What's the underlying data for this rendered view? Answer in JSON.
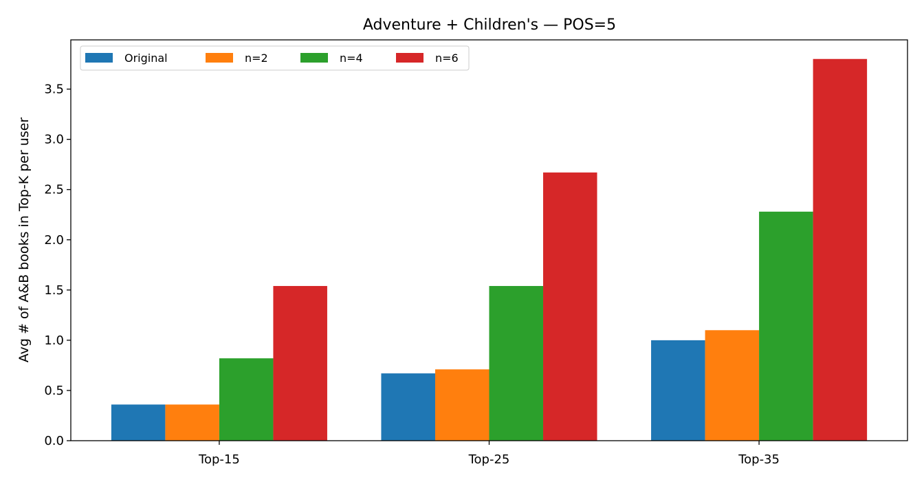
{
  "chart_data": {
    "type": "bar",
    "title": "Adventure + Children's — POS=5",
    "xlabel": "",
    "ylabel": "Avg # of A&B books in Top-K per user",
    "categories": [
      "Top-15",
      "Top-25",
      "Top-35"
    ],
    "series": [
      {
        "name": "Original",
        "color": "#1f77b4",
        "values": [
          0.36,
          0.67,
          1.0
        ]
      },
      {
        "name": "n=2",
        "color": "#ff7f0e",
        "values": [
          0.36,
          0.71,
          1.1
        ]
      },
      {
        "name": "n=4",
        "color": "#2ca02c",
        "values": [
          0.82,
          1.54,
          2.28
        ]
      },
      {
        "name": "n=6",
        "color": "#d62728",
        "values": [
          1.54,
          2.67,
          3.8
        ]
      }
    ],
    "ylim": [
      0,
      3.99
    ],
    "yticks": [
      "0.0",
      "0.5",
      "1.0",
      "1.5",
      "2.0",
      "2.5",
      "3.0",
      "3.5"
    ],
    "grid": false,
    "legend_position": "top-left"
  }
}
